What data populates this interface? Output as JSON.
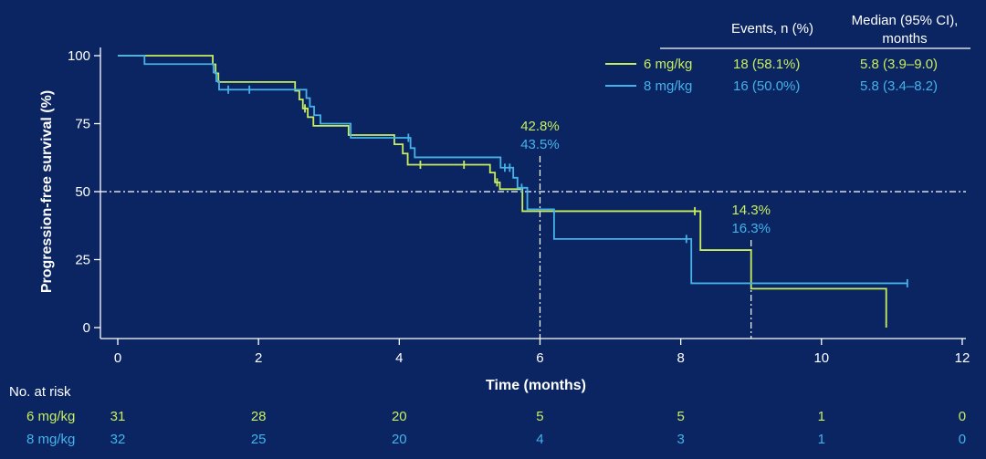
{
  "colors": {
    "background": "#0a2562",
    "foreground": "#ffffff"
  },
  "chart_data": {
    "type": "line",
    "xlabel": "Time (months)",
    "ylabel": "Progression-free survival (%)",
    "xlim": [
      0,
      12
    ],
    "ylim": [
      0,
      100
    ],
    "xticks": [
      0,
      2,
      4,
      6,
      8,
      10,
      12
    ],
    "yticks": [
      0,
      25,
      50,
      75,
      100
    ],
    "grid": false,
    "legend_position": "top-right",
    "legend": {
      "events_header": "Events, n (%)",
      "median_header": "Median (95% CI),",
      "median_header_unit": "months"
    },
    "series": [
      {
        "name": "6 mg/kg",
        "color": "#c8ee5e",
        "events": "18 (58.1%)",
        "median": "5.8 (3.9–9.0)",
        "steps": [
          [
            0,
            100
          ],
          [
            1.35,
            96.8
          ],
          [
            1.39,
            93.5
          ],
          [
            1.43,
            90.3
          ],
          [
            2.52,
            87.1
          ],
          [
            2.58,
            83.9
          ],
          [
            2.63,
            80.6
          ],
          [
            2.7,
            77.4
          ],
          [
            2.78,
            74.2
          ],
          [
            3.28,
            70.8
          ],
          [
            3.93,
            67.4
          ],
          [
            4.05,
            64.0
          ],
          [
            4.12,
            59.9
          ],
          [
            5.29,
            57.0
          ],
          [
            5.36,
            53.4
          ],
          [
            5.43,
            50.9
          ],
          [
            5.75,
            42.8
          ],
          [
            8.28,
            28.5
          ],
          [
            9.0,
            14.3
          ],
          [
            10.92,
            0
          ]
        ],
        "censored": [
          [
            2.66,
            80.6
          ],
          [
            4.3,
            59.9
          ],
          [
            4.92,
            59.9
          ],
          [
            5.39,
            53.4
          ],
          [
            8.2,
            42.8
          ]
        ],
        "last_followup": 10.92
      },
      {
        "name": "8 mg/kg",
        "color": "#45b3ea",
        "events": "16 (50.0%)",
        "median": "5.8 (3.4–8.2)",
        "steps": [
          [
            0,
            100
          ],
          [
            0.38,
            96.9
          ],
          [
            1.36,
            93.8
          ],
          [
            1.4,
            90.6
          ],
          [
            1.44,
            87.5
          ],
          [
            2.68,
            84.4
          ],
          [
            2.73,
            81.3
          ],
          [
            2.79,
            78.1
          ],
          [
            2.88,
            75.0
          ],
          [
            3.31,
            69.8
          ],
          [
            4.16,
            66.0
          ],
          [
            4.22,
            62.6
          ],
          [
            5.44,
            58.8
          ],
          [
            5.62,
            55.1
          ],
          [
            5.68,
            51.4
          ],
          [
            5.82,
            43.5
          ],
          [
            6.2,
            32.6
          ],
          [
            8.15,
            16.3
          ]
        ],
        "censored": [
          [
            1.57,
            87.5
          ],
          [
            1.87,
            87.5
          ],
          [
            4.13,
            69.8
          ],
          [
            5.5,
            58.8
          ],
          [
            5.57,
            58.8
          ],
          [
            5.74,
            51.4
          ],
          [
            8.08,
            32.6
          ],
          [
            11.22,
            16.3
          ]
        ],
        "last_followup": 11.22
      }
    ],
    "reference_lines": {
      "horizontal_y": 50
    },
    "annotations": [
      {
        "x": 6,
        "labels": [
          {
            "text": "42.8%",
            "series": 0
          },
          {
            "text": "43.5%",
            "series": 1
          }
        ]
      },
      {
        "x": 9,
        "labels": [
          {
            "text": "14.3%",
            "series": 0
          },
          {
            "text": "16.3%",
            "series": 1
          }
        ]
      }
    ],
    "at_risk": {
      "title": "No. at risk",
      "times": [
        0,
        2,
        4,
        6,
        8,
        10,
        12
      ],
      "rows": [
        {
          "name": "6 mg/kg",
          "series": 0,
          "values": [
            31,
            28,
            20,
            5,
            5,
            1,
            0
          ]
        },
        {
          "name": "8 mg/kg",
          "series": 1,
          "values": [
            32,
            25,
            20,
            4,
            3,
            1,
            0
          ]
        }
      ]
    }
  }
}
